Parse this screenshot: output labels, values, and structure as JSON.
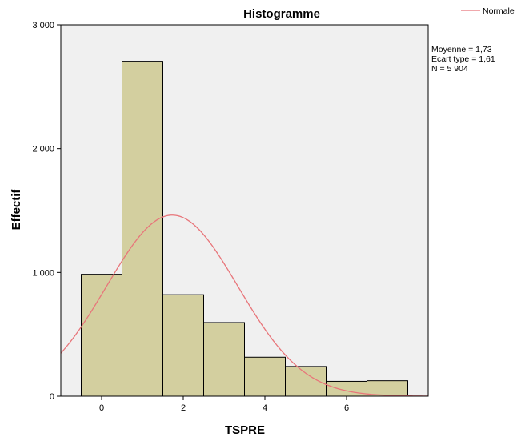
{
  "chart_data": {
    "type": "bar",
    "title": "Histogramme",
    "xlabel": "TSPRE",
    "ylabel": "Effectif",
    "xlim": [
      -1,
      8
    ],
    "ylim": [
      0,
      3000
    ],
    "x_ticks": [
      {
        "value": 0,
        "label": "0"
      },
      {
        "value": 2,
        "label": "2"
      },
      {
        "value": 4,
        "label": "4"
      },
      {
        "value": 6,
        "label": "6"
      }
    ],
    "y_ticks": [
      {
        "value": 0,
        "label": "0"
      },
      {
        "value": 1000,
        "label": "1 000"
      },
      {
        "value": 2000,
        "label": "2 000"
      },
      {
        "value": 3000,
        "label": "3 000"
      }
    ],
    "bins": [
      {
        "x0": -0.5,
        "x1": 0.5,
        "value": 985
      },
      {
        "x0": 0.5,
        "x1": 1.5,
        "value": 2705
      },
      {
        "x0": 1.5,
        "x1": 2.5,
        "value": 820
      },
      {
        "x0": 2.5,
        "x1": 3.5,
        "value": 595
      },
      {
        "x0": 3.5,
        "x1": 4.5,
        "value": 315
      },
      {
        "x0": 4.5,
        "x1": 5.5,
        "value": 240
      },
      {
        "x0": 5.5,
        "x1": 6.5,
        "value": 120
      },
      {
        "x0": 6.5,
        "x1": 7.5,
        "value": 125
      }
    ],
    "normal_curve": {
      "name": "Normale",
      "mean": 1.73,
      "sd": 1.61,
      "n": 5904,
      "bin_width": 1,
      "color": "#e8757a"
    },
    "stats": [
      "Moyenne = 1,73",
      "Ecart type = 1,61",
      "N = 5 904"
    ],
    "legend": {
      "position": "top-right",
      "items": [
        {
          "label": "Normale",
          "color": "#e8757a"
        }
      ]
    },
    "bar_color": "#d3cf9f",
    "bar_edge_color": "#000000",
    "plot_background": "#f0f0f0",
    "grid": false
  }
}
